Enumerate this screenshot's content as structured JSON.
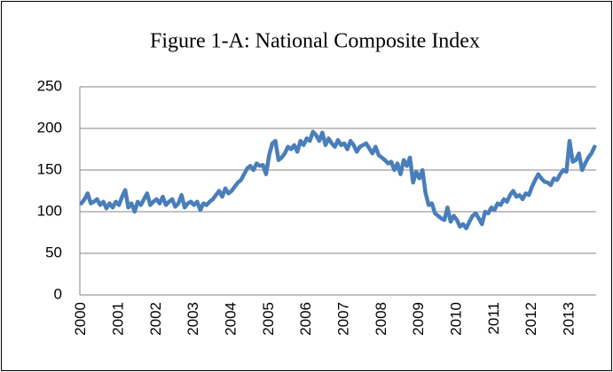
{
  "chart_data": {
    "type": "line",
    "title": "Figure 1-A: National Composite Index",
    "categories": [
      "2000",
      null,
      null,
      null,
      null,
      null,
      null,
      null,
      null,
      null,
      null,
      null,
      "2001",
      null,
      null,
      null,
      null,
      null,
      null,
      null,
      null,
      null,
      null,
      null,
      "2002",
      null,
      null,
      null,
      null,
      null,
      null,
      null,
      null,
      null,
      null,
      null,
      "2003",
      null,
      null,
      null,
      null,
      null,
      null,
      null,
      null,
      null,
      null,
      null,
      "2004",
      null,
      null,
      null,
      null,
      null,
      null,
      null,
      null,
      null,
      null,
      null,
      "2005",
      null,
      null,
      null,
      null,
      null,
      null,
      null,
      null,
      null,
      null,
      null,
      "2006",
      null,
      null,
      null,
      null,
      null,
      null,
      null,
      null,
      null,
      null,
      null,
      "2007",
      null,
      null,
      null,
      null,
      null,
      null,
      null,
      null,
      null,
      null,
      null,
      "2008",
      null,
      null,
      null,
      null,
      null,
      null,
      null,
      null,
      null,
      null,
      null,
      "2009",
      null,
      null,
      null,
      null,
      null,
      null,
      null,
      null,
      null,
      null,
      null,
      "2010",
      null,
      null,
      null,
      null,
      null,
      null,
      null,
      null,
      null,
      null,
      null,
      "2011",
      null,
      null,
      null,
      null,
      null,
      null,
      null,
      null,
      null,
      null,
      null,
      "2012",
      null,
      null,
      null,
      null,
      null,
      null,
      null,
      null,
      null,
      null,
      null,
      "2013",
      null,
      null,
      null,
      null,
      null,
      null,
      null,
      null
    ],
    "values": [
      110,
      115,
      122,
      110,
      112,
      115,
      108,
      112,
      104,
      110,
      105,
      112,
      108,
      118,
      126,
      105,
      110,
      100,
      112,
      108,
      115,
      122,
      108,
      112,
      115,
      110,
      118,
      108,
      112,
      115,
      106,
      110,
      120,
      105,
      110,
      112,
      108,
      112,
      102,
      110,
      108,
      112,
      115,
      120,
      125,
      118,
      128,
      122,
      125,
      130,
      135,
      138,
      145,
      152,
      155,
      150,
      158,
      155,
      156,
      145,
      168,
      182,
      185,
      162,
      165,
      170,
      178,
      175,
      180,
      172,
      185,
      180,
      188,
      185,
      196,
      192,
      185,
      195,
      180,
      188,
      182,
      178,
      186,
      180,
      182,
      175,
      185,
      180,
      172,
      178,
      180,
      182,
      176,
      170,
      178,
      168,
      165,
      162,
      158,
      160,
      150,
      158,
      145,
      162,
      155,
      165,
      135,
      148,
      140,
      150,
      122,
      108,
      110,
      98,
      95,
      92,
      90,
      105,
      88,
      95,
      90,
      82,
      85,
      80,
      88,
      95,
      98,
      92,
      85,
      100,
      98,
      105,
      102,
      110,
      108,
      115,
      112,
      120,
      125,
      118,
      120,
      115,
      122,
      120,
      130,
      138,
      145,
      140,
      136,
      135,
      132,
      140,
      138,
      145,
      150,
      148,
      185,
      160,
      162,
      170,
      150,
      158,
      165,
      170,
      178
    ],
    "color": "#4a7ebb",
    "ylim": [
      0,
      250
    ],
    "yticks": [
      0,
      50,
      100,
      150,
      200,
      250
    ],
    "grid": true
  }
}
